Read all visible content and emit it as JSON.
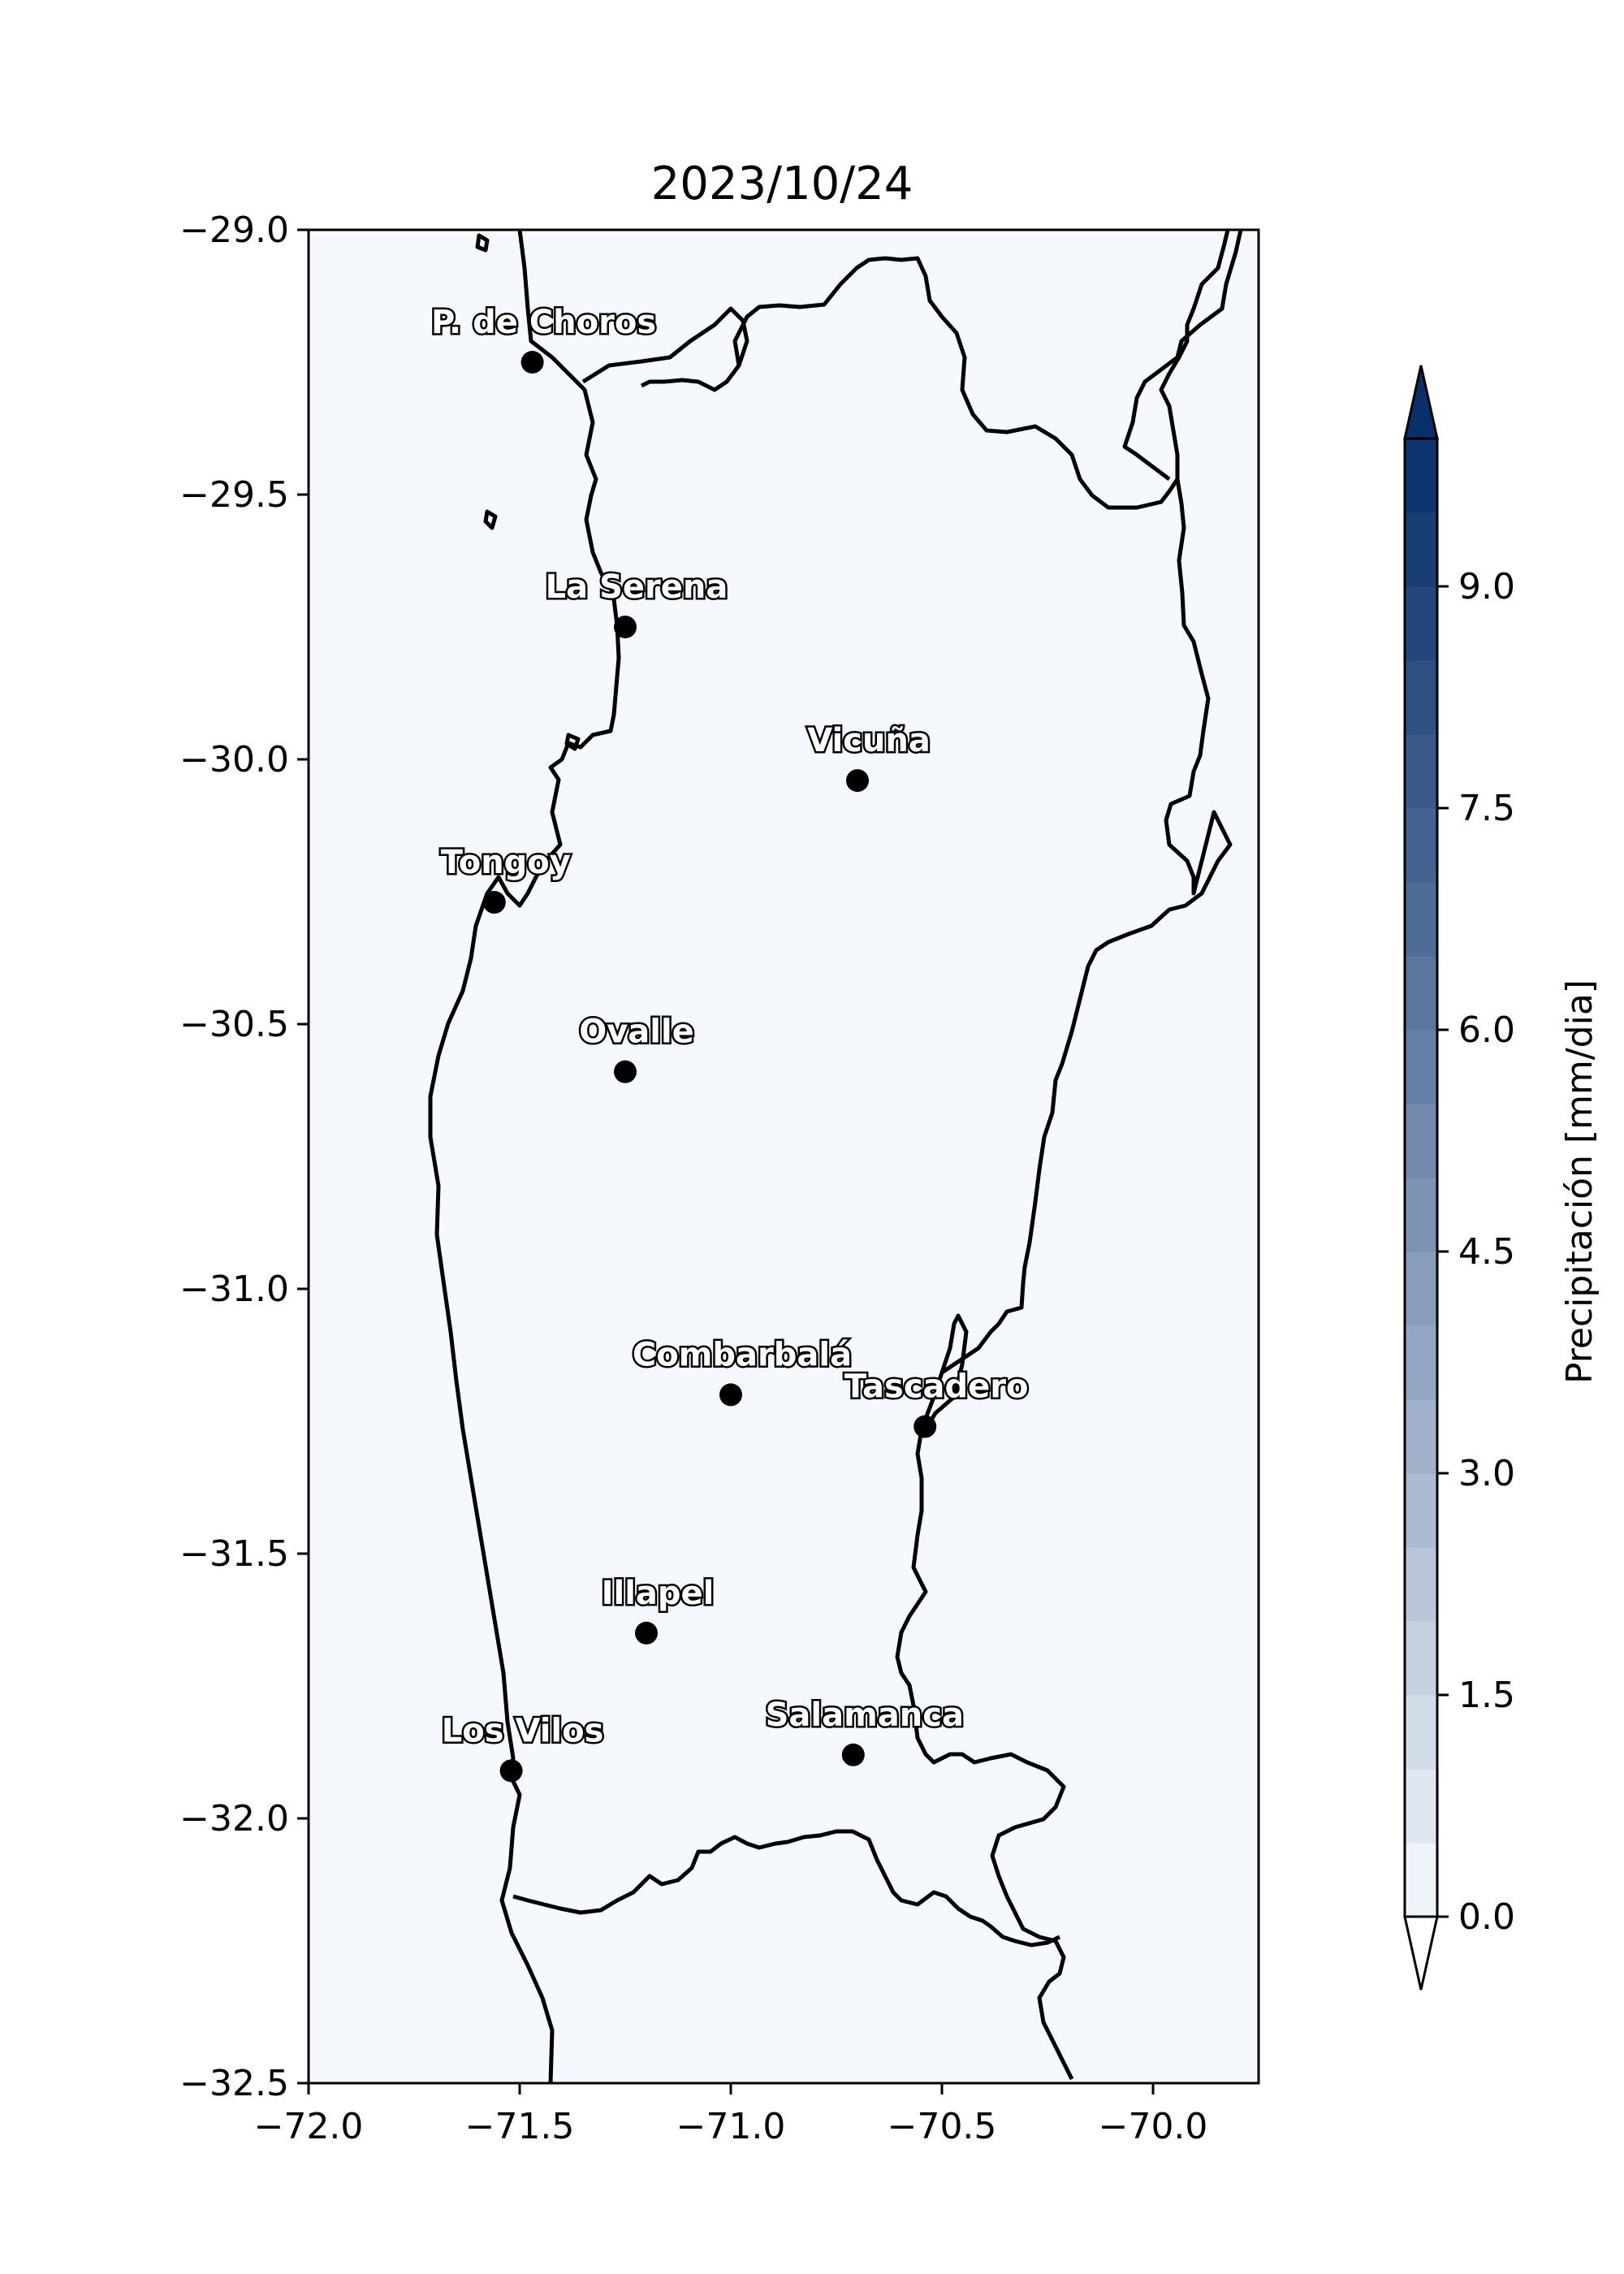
{
  "title": "2023/10/24",
  "map": {
    "xlim": [
      -72.0,
      -69.75
    ],
    "ylim": [
      -32.5,
      -29.0
    ],
    "xticks": [
      {
        "value": -72.0,
        "label": "−72.0"
      },
      {
        "value": -71.5,
        "label": "−71.5"
      },
      {
        "value": -71.0,
        "label": "−71.0"
      },
      {
        "value": -70.5,
        "label": "−70.5"
      },
      {
        "value": -70.0,
        "label": "−70.0"
      }
    ],
    "yticks": [
      {
        "value": -29.0,
        "label": "−29.0"
      },
      {
        "value": -29.5,
        "label": "−29.5"
      },
      {
        "value": -30.0,
        "label": "−30.0"
      },
      {
        "value": -30.5,
        "label": "−30.5"
      },
      {
        "value": -31.0,
        "label": "−31.0"
      },
      {
        "value": -31.5,
        "label": "−31.5"
      },
      {
        "value": -32.0,
        "label": "−32.0"
      },
      {
        "value": -32.5,
        "label": "−32.5"
      }
    ],
    "background_color": "#f5f9fe",
    "cities": [
      {
        "name": "P. de Choros",
        "lon": -71.47,
        "lat": -29.25
      },
      {
        "name": "La Serena",
        "lon": -71.25,
        "lat": -29.75
      },
      {
        "name": "Vicuña",
        "lon": -70.7,
        "lat": -30.04
      },
      {
        "name": "Tongoy",
        "lon": -71.56,
        "lat": -30.27
      },
      {
        "name": "Ovalle",
        "lon": -71.25,
        "lat": -30.59
      },
      {
        "name": "Combarbalá",
        "lon": -71.0,
        "lat": -31.2
      },
      {
        "name": "Tascadero",
        "lon": -70.54,
        "lat": -31.26
      },
      {
        "name": "Illapel",
        "lon": -71.2,
        "lat": -31.65
      },
      {
        "name": "Los Vilos",
        "lon": -71.52,
        "lat": -31.91
      },
      {
        "name": "Salamanca",
        "lon": -70.71,
        "lat": -31.88
      }
    ]
  },
  "colorbar": {
    "label": "Precipitación [mm/dia]",
    "range": [
      0,
      10
    ],
    "ticks": [
      {
        "value": 0.0,
        "label": "0.0"
      },
      {
        "value": 1.5,
        "label": "1.5"
      },
      {
        "value": 3.0,
        "label": "3.0"
      },
      {
        "value": 4.5,
        "label": "4.5"
      },
      {
        "value": 6.0,
        "label": "6.0"
      },
      {
        "value": 7.5,
        "label": "7.5"
      },
      {
        "value": 9.0,
        "label": "9.0"
      }
    ],
    "colormap": "Blues",
    "levels": 20,
    "extend": "both",
    "color_low": "#f7fbff",
    "color_high": "#08306b"
  }
}
